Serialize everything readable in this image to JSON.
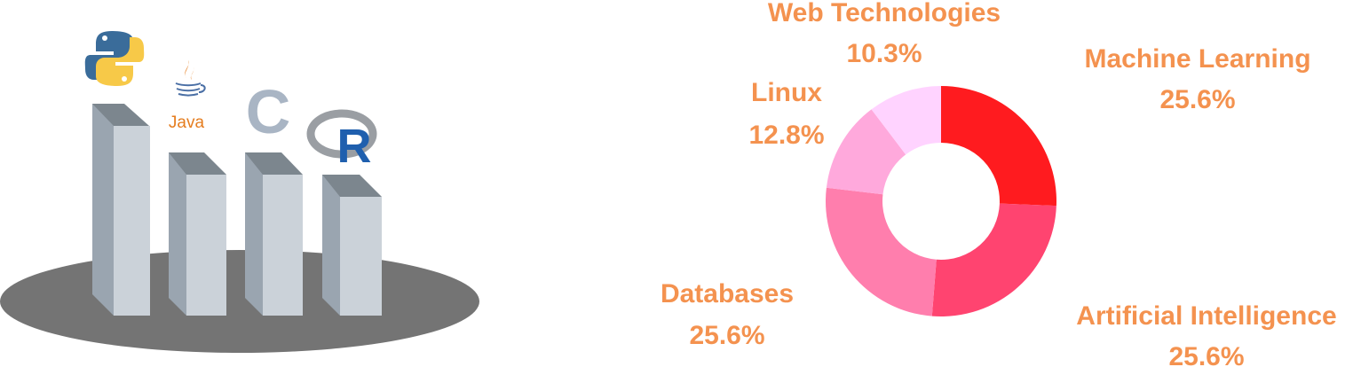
{
  "illustration": {
    "languages": [
      {
        "name": "python-logo"
      },
      {
        "name": "java-logo",
        "wordmark": "Java"
      },
      {
        "name": "c-logo",
        "wordmark": "C"
      },
      {
        "name": "r-logo",
        "wordmark": "R"
      }
    ],
    "colors": {
      "platform": "#747474",
      "bar_top": "#7c868e",
      "bar_side": "#9aa5b0",
      "bar_front": "#cbd2d9",
      "python_blue": "#3a6c9a",
      "python_yellow": "#f7c948",
      "java_orange": "#e57d1f",
      "c_gray": "#a9b5c4",
      "r_blue": "#1f5fae",
      "r_ring": "#9a9ea3"
    }
  },
  "chart_data": {
    "type": "pie",
    "donut": true,
    "categories": [
      "Machine Learning",
      "Artificial Intelligence",
      "Databases",
      "Linux",
      "Web Technologies"
    ],
    "values": [
      25.6,
      25.6,
      25.6,
      12.8,
      10.3
    ],
    "value_labels": [
      "25.6%",
      "25.6%",
      "25.6%",
      "12.8%",
      "10.3%"
    ],
    "colors": [
      "#ff1b1f",
      "#ff4470",
      "#ff7ead",
      "#ffa9dc",
      "#ffd3ff"
    ],
    "label_color": "#f4924f",
    "start_direction": "top",
    "direction": "clockwise"
  }
}
